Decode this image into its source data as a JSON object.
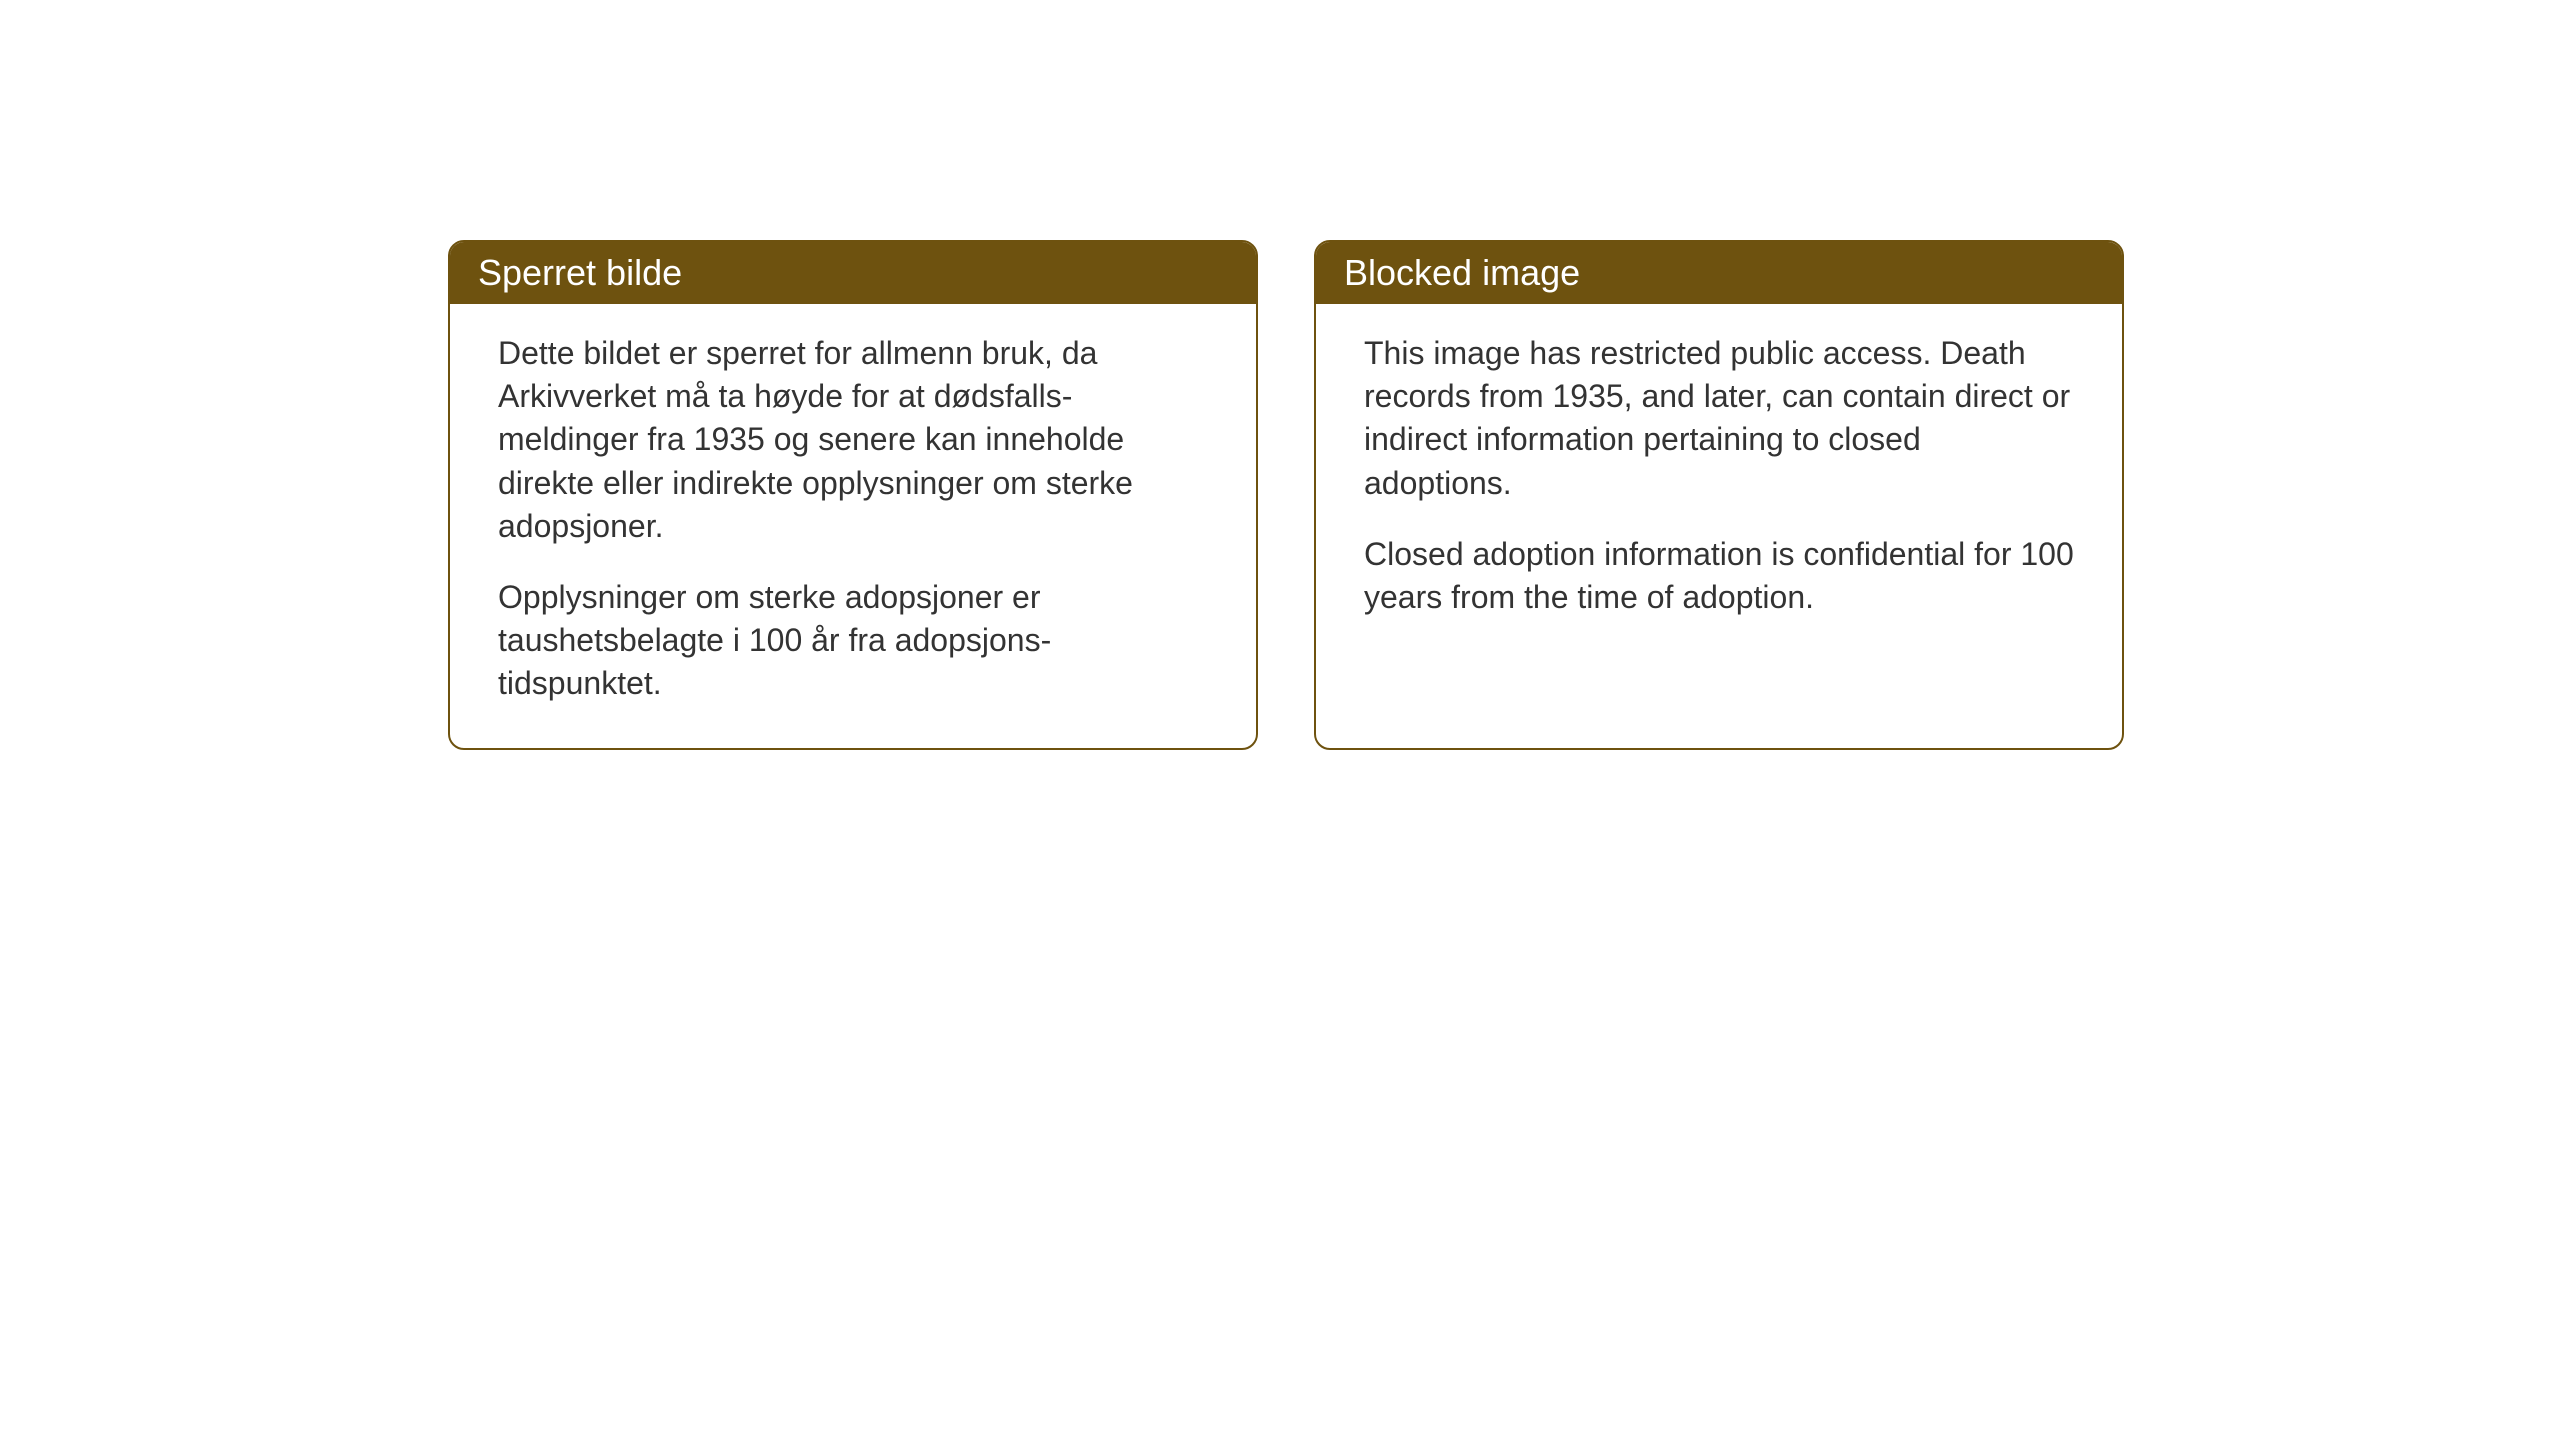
{
  "layout": {
    "background_color": "#ffffff",
    "card_border_color": "#6e520f",
    "card_header_bg": "#6e520f",
    "card_header_text_color": "#ffffff",
    "body_text_color": "#333333",
    "card_border_radius": 16,
    "gap_between_cards": 56,
    "header_fontsize": 36,
    "body_fontsize": 32
  },
  "cards": {
    "left": {
      "title": "Sperret bilde",
      "paragraph1": "Dette bildet er sperret for allmenn bruk, da Arkivverket må ta høyde for at dødsfalls-meldinger fra 1935 og senere kan inneholde direkte eller indirekte opplysninger om sterke adopsjoner.",
      "paragraph2": "Opplysninger om sterke adopsjoner er taushetsbelagte i 100 år fra adopsjons-tidspunktet."
    },
    "right": {
      "title": "Blocked image",
      "paragraph1": "This image has restricted public access. Death records from 1935, and later, can contain direct or indirect information pertaining to closed adoptions.",
      "paragraph2": "Closed adoption information is confidential for 100 years from the time of adoption."
    }
  }
}
